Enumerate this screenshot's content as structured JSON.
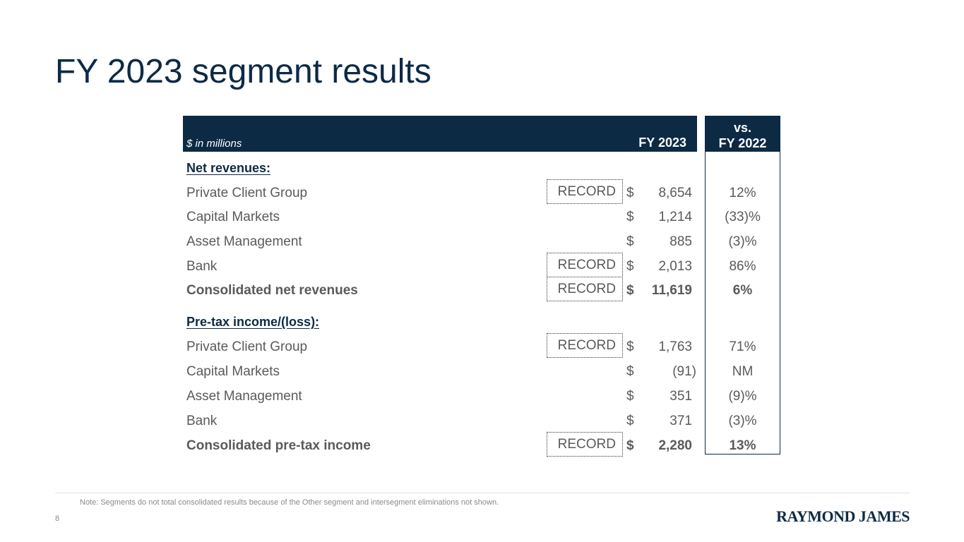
{
  "title": "FY 2023 segment results",
  "header": {
    "units_label": "$ in millions",
    "period": "FY 2023",
    "vs_line1": "vs.",
    "vs_line2": "FY 2022"
  },
  "net_revenues": {
    "title": "Net revenues:",
    "rows": [
      {
        "label": "Private Client Group",
        "record": "RECORD",
        "dollar": "$",
        "amount": "8,654",
        "change": "12%"
      },
      {
        "label": "Capital Markets",
        "record": "",
        "dollar": "$",
        "amount": "1,214",
        "change": "(33)%"
      },
      {
        "label": "Asset Management",
        "record": "",
        "dollar": "$",
        "amount": "885",
        "change": "(3)%"
      },
      {
        "label": "Bank",
        "record": "RECORD",
        "dollar": "$",
        "amount": "2,013",
        "change": "86%"
      },
      {
        "label": "Consolidated net revenues",
        "record": "RECORD",
        "dollar": "$",
        "amount": "11,619",
        "change": "6%"
      }
    ]
  },
  "pretax_income": {
    "title": "Pre-tax income/(loss):",
    "rows": [
      {
        "label": "Private Client Group",
        "record": "RECORD",
        "dollar": "$",
        "amount": "1,763",
        "change": "71%"
      },
      {
        "label": "Capital Markets",
        "record": "",
        "dollar": "$",
        "amount": "(91)",
        "change": "NM"
      },
      {
        "label": "Asset Management",
        "record": "",
        "dollar": "$",
        "amount": "351",
        "change": "(9)%"
      },
      {
        "label": "Bank",
        "record": "",
        "dollar": "$",
        "amount": "371",
        "change": "(3)%"
      },
      {
        "label": "Consolidated pre-tax income",
        "record": "RECORD",
        "dollar": "$",
        "amount": "2,280",
        "change": "13%"
      }
    ]
  },
  "footer": {
    "note": "Note: Segments do not total consolidated results because of the Other segment and intersegment eliminations not shown.",
    "page_number": "8",
    "logo": "RAYMOND JAMES"
  },
  "colors": {
    "navy": "#0d2a45",
    "text": "#5a5a5a"
  }
}
